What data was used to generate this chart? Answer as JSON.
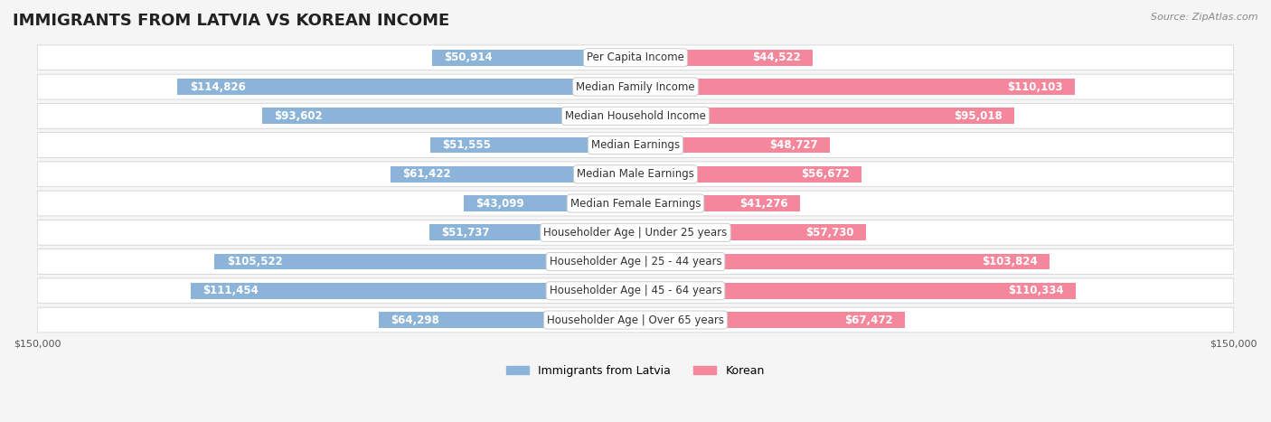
{
  "title": "IMMIGRANTS FROM LATVIA VS KOREAN INCOME",
  "source": "Source: ZipAtlas.com",
  "categories": [
    "Per Capita Income",
    "Median Family Income",
    "Median Household Income",
    "Median Earnings",
    "Median Male Earnings",
    "Median Female Earnings",
    "Householder Age | Under 25 years",
    "Householder Age | 25 - 44 years",
    "Householder Age | 45 - 64 years",
    "Householder Age | Over 65 years"
  ],
  "latvia_values": [
    50914,
    114826,
    93602,
    51555,
    61422,
    43099,
    51737,
    105522,
    111454,
    64298
  ],
  "korean_values": [
    44522,
    110103,
    95018,
    48727,
    56672,
    41276,
    57730,
    103824,
    110334,
    67472
  ],
  "latvia_labels": [
    "$50,914",
    "$114,826",
    "$93,602",
    "$51,555",
    "$61,422",
    "$43,099",
    "$51,737",
    "$105,522",
    "$111,454",
    "$64,298"
  ],
  "korean_labels": [
    "$44,522",
    "$110,103",
    "$95,018",
    "$48,727",
    "$56,672",
    "$41,276",
    "$57,730",
    "$103,824",
    "$110,334",
    "$67,472"
  ],
  "max_value": 150000,
  "bar_color_latvia": "#8cb4d8",
  "bar_color_korean": "#f4879c",
  "bar_color_latvia_dark": "#5a9abf",
  "bar_color_korean_dark": "#e85c7a",
  "bg_color": "#f5f5f5",
  "row_bg_color": "#ffffff",
  "label_bg_color": "#ffffff",
  "title_fontsize": 13,
  "label_fontsize": 8.5,
  "category_fontsize": 8.5,
  "axis_fontsize": 8,
  "legend_fontsize": 9,
  "source_fontsize": 8
}
